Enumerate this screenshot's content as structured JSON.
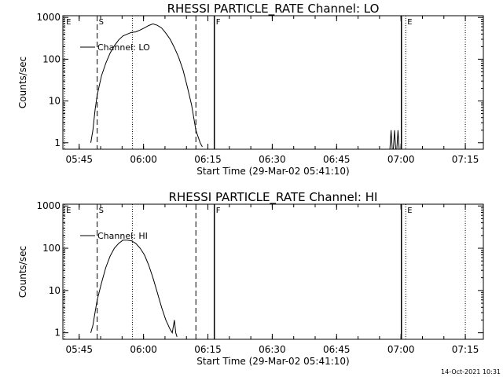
{
  "chart_data": [
    {
      "type": "line",
      "title": "RHESSI PARTICLE_RATE Channel: LO",
      "xlabel": "Start Time (29-Mar-02 05:41:10)",
      "ylabel": "Counts/sec",
      "yscale": "log",
      "ylim": [
        0.7,
        1100
      ],
      "xlim_minutes_after_start": [
        0,
        98
      ],
      "x_ticks": [
        {
          "label": "05:45",
          "value": 3.8
        },
        {
          "label": "06:00",
          "value": 18.8
        },
        {
          "label": "06:15",
          "value": 33.8
        },
        {
          "label": "06:30",
          "value": 48.8
        },
        {
          "label": "06:45",
          "value": 63.8
        },
        {
          "label": "07:00",
          "value": 78.8
        },
        {
          "label": "07:15",
          "value": 93.8
        }
      ],
      "y_ticks": [
        {
          "label": "1",
          "value": 1
        },
        {
          "label": "10",
          "value": 10
        },
        {
          "label": "100",
          "value": 100
        },
        {
          "label": "1000",
          "value": 1000
        }
      ],
      "legend": "Channel: LO",
      "markers": [
        {
          "label": "E",
          "x": 0.4,
          "style": "dotted"
        },
        {
          "label": "S",
          "x": 8.0,
          "style": "dashed"
        },
        {
          "label": "",
          "x": 16.2,
          "style": "dotted"
        },
        {
          "label": "",
          "x": 31.0,
          "style": "dashed"
        },
        {
          "label": "F",
          "x": 35.3,
          "style": "solid"
        },
        {
          "label": "",
          "x": 78.9,
          "style": "solid"
        },
        {
          "label": "E",
          "x": 79.9,
          "style": "dotted"
        },
        {
          "label": "",
          "x": 93.8,
          "style": "dotted"
        }
      ],
      "x": [
        6.5,
        7.0,
        7.5,
        8.0,
        9.0,
        10.0,
        11.0,
        12.0,
        13.0,
        14.0,
        15.0,
        16.0,
        17.0,
        18.0,
        19.0,
        20.0,
        21.0,
        22.0,
        23.0,
        24.0,
        25.0,
        26.0,
        27.0,
        28.0,
        29.0,
        30.0,
        30.5,
        31.0,
        31.5,
        32.0,
        32.5
      ],
      "values": [
        1,
        2,
        6,
        14,
        40,
        80,
        140,
        210,
        290,
        360,
        400,
        440,
        450,
        500,
        560,
        640,
        700,
        650,
        560,
        420,
        300,
        190,
        110,
        55,
        22,
        8,
        4,
        2,
        1.4,
        1,
        0.8
      ],
      "bursts": [
        {
          "x": 76.5,
          "value": 2
        },
        {
          "x": 77.3,
          "value": 2
        },
        {
          "x": 78.1,
          "value": 2
        }
      ]
    },
    {
      "type": "line",
      "title": "RHESSI PARTICLE_RATE Channel: HI",
      "xlabel": "Start Time (29-Mar-02 05:41:10)",
      "ylabel": "Counts/sec",
      "yscale": "log",
      "ylim": [
        0.7,
        1100
      ],
      "xlim_minutes_after_start": [
        0,
        98
      ],
      "x_ticks": [
        {
          "label": "05:45",
          "value": 3.8
        },
        {
          "label": "06:00",
          "value": 18.8
        },
        {
          "label": "06:15",
          "value": 33.8
        },
        {
          "label": "06:30",
          "value": 48.8
        },
        {
          "label": "06:45",
          "value": 63.8
        },
        {
          "label": "07:00",
          "value": 78.8
        },
        {
          "label": "07:15",
          "value": 93.8
        }
      ],
      "y_ticks": [
        {
          "label": "1",
          "value": 1
        },
        {
          "label": "10",
          "value": 10
        },
        {
          "label": "100",
          "value": 100
        },
        {
          "label": "1000",
          "value": 1000
        }
      ],
      "legend": "Channel: HI",
      "markers": [
        {
          "label": "E",
          "x": 0.4,
          "style": "dotted"
        },
        {
          "label": "S",
          "x": 8.0,
          "style": "dashed"
        },
        {
          "label": "",
          "x": 16.2,
          "style": "dotted"
        },
        {
          "label": "",
          "x": 31.0,
          "style": "dashed"
        },
        {
          "label": "F",
          "x": 35.3,
          "style": "solid"
        },
        {
          "label": "",
          "x": 78.9,
          "style": "solid"
        },
        {
          "label": "E",
          "x": 79.9,
          "style": "dotted"
        },
        {
          "label": "",
          "x": 93.8,
          "style": "dotted"
        }
      ],
      "x": [
        6.5,
        7.0,
        7.5,
        8.0,
        9.0,
        10.0,
        11.0,
        12.0,
        13.0,
        14.0,
        15.0,
        16.0,
        17.0,
        18.0,
        19.0,
        20.0,
        21.0,
        22.0,
        23.0,
        24.0,
        25.0,
        25.5,
        26.0,
        26.3,
        26.6
      ],
      "values": [
        1,
        1.5,
        3,
        6,
        15,
        35,
        65,
        100,
        130,
        155,
        155,
        150,
        130,
        100,
        70,
        40,
        20,
        9,
        4,
        2,
        1.2,
        1,
        2,
        1,
        0.8
      ],
      "bursts": []
    }
  ],
  "footer": {
    "timestamp": "14-Oct-2021 10:31"
  }
}
